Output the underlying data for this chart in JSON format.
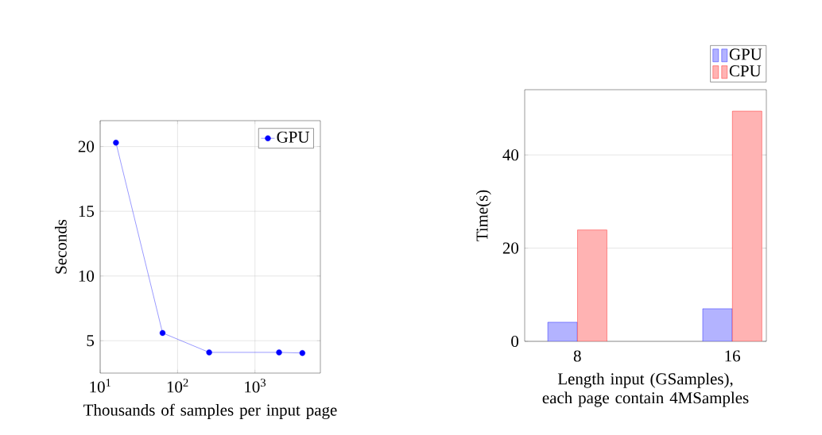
{
  "chart_data": [
    {
      "type": "line",
      "xlabel": "Thousands of samples per input page",
      "ylabel": "Seconds",
      "log": "x",
      "x": [
        16,
        64,
        256,
        2048,
        4096
      ],
      "series": [
        {
          "name": "GPU",
          "color": "#0000ff",
          "values": [
            20.3,
            5.6,
            4.1,
            4.1,
            4.05
          ]
        }
      ],
      "xlim": [
        10,
        7000
      ],
      "ylim": [
        2.5,
        22
      ],
      "xticks": [
        {
          "value": 10,
          "label": "10$^{1}$"
        },
        {
          "value": 100,
          "label": "10$^{2}$"
        },
        {
          "value": 1000,
          "label": "10$^{3}$"
        }
      ],
      "yticks": [
        5,
        10,
        15,
        20
      ],
      "grid": true,
      "legend": "top right",
      "marker": "circle",
      "line_style": "solid"
    },
    {
      "type": "bar",
      "xlabel": "Length input (GSamples), each page contain 4MSamples",
      "ylabel": "Time(s)",
      "categories": [
        "8",
        "16"
      ],
      "series": [
        {
          "name": "GPU",
          "color": "#b3b3ff",
          "values": [
            4.1,
            7.0
          ]
        },
        {
          "name": "CPU",
          "color": "#ffb3b3",
          "values": [
            23.9,
            49.4
          ]
        }
      ],
      "ylim": [
        0,
        54
      ],
      "yticks": [
        0,
        20,
        40
      ],
      "grid": "y",
      "legend": "top right outside"
    }
  ]
}
